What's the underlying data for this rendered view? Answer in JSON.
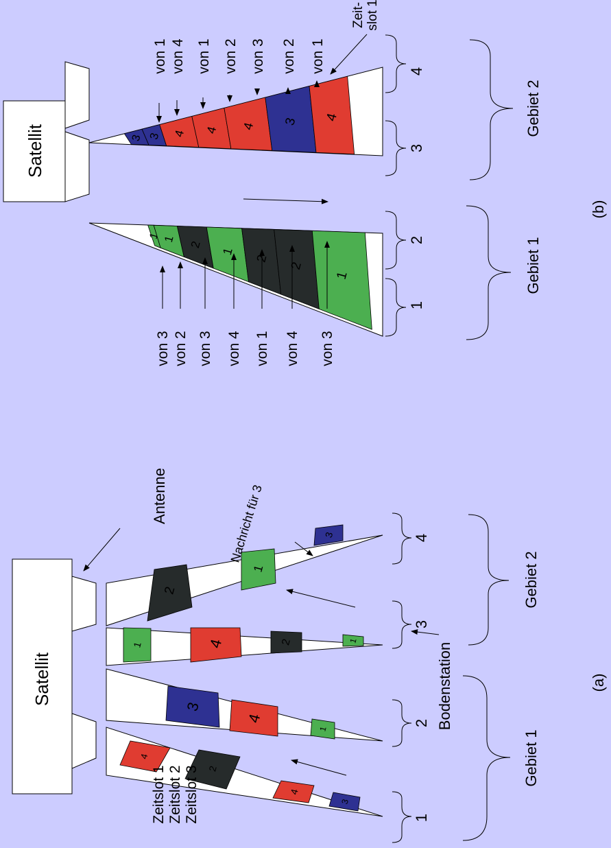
{
  "colors": {
    "background": "#ccccff",
    "green": "#4caf50",
    "red": "#e03c31",
    "blue": "#2e3192",
    "dark": "#262b2b",
    "beam": "#ffffff",
    "line": "#000000"
  },
  "panel_a": {
    "label": "(a)",
    "satellite": "Satellit",
    "antenna": "Antenne",
    "message": "Nachricht für 3",
    "ground_station": "Bodenstation",
    "slots": [
      "Zeitslot 1",
      "Zeitslot 2",
      "Zeitslot 3"
    ],
    "area1": "Gebiet 1",
    "area2": "Gebiet 2",
    "stations": [
      "1",
      "2",
      "3",
      "4"
    ],
    "beam_cells": [
      [
        "4",
        "2",
        "4",
        "3"
      ],
      [
        "3",
        "4",
        "1"
      ],
      [
        "1",
        "4",
        "2",
        "1"
      ],
      [
        "2",
        "1",
        "3"
      ]
    ]
  },
  "panel_b": {
    "label": "(b)",
    "satellite": "Satellit",
    "area1": "Gebiet 1",
    "area2": "Gebiet 2",
    "stations": [
      "1",
      "2",
      "3",
      "4"
    ],
    "zeitslot_line1": "Zeit-",
    "zeitslot_line2": "slot 1",
    "beam1_cells": [
      "1",
      "2",
      "2",
      "1",
      "2",
      "1",
      "1"
    ],
    "beam2_cells": [
      "4",
      "3",
      "4",
      "4",
      "4",
      "3",
      "3"
    ],
    "from_left": [
      "von 3",
      "von 2",
      "von 3",
      "von 4",
      "von 1",
      "von 4",
      "von 3"
    ],
    "from_right": [
      "von 1",
      "von 4",
      "von 1",
      "von 2",
      "von 3",
      "von 2",
      "von 1"
    ]
  }
}
